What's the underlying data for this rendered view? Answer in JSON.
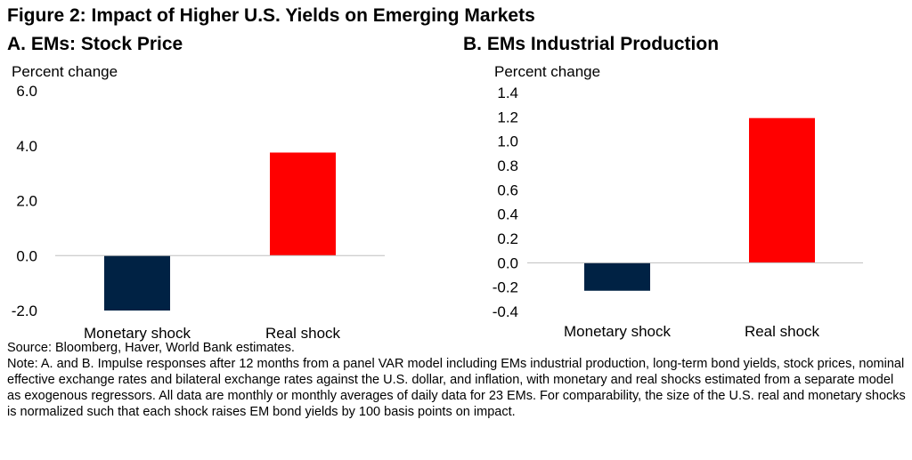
{
  "figure": {
    "title": "Figure 2: Impact of Higher U.S. Yields on Emerging Markets"
  },
  "colors": {
    "monetary": "#002244",
    "real": "#ff0000",
    "axis": "#bfbfbf"
  },
  "chart_data": [
    {
      "type": "bar",
      "title": "A. EMs: Stock Price",
      "ylabel": "Percent change",
      "categories": [
        "Monetary shock",
        "Real shock"
      ],
      "values": [
        -2.0,
        3.75
      ],
      "ylim": [
        -2.0,
        6.0
      ],
      "yticks": [
        "6.0",
        "4.0",
        "2.0",
        "0.0",
        "-2.0"
      ],
      "ytick_values": [
        6.0,
        4.0,
        2.0,
        0.0,
        -2.0
      ],
      "grid": false,
      "legend": "none"
    },
    {
      "type": "bar",
      "title": "B. EMs Industrial Production",
      "ylabel": "Percent change",
      "categories": [
        "Monetary shock",
        "Real shock"
      ],
      "values": [
        -0.23,
        1.19
      ],
      "ylim": [
        -0.4,
        1.4
      ],
      "yticks": [
        "1.4",
        "1.2",
        "1.0",
        "0.8",
        "0.6",
        "0.4",
        "0.2",
        "0.0",
        "-0.2",
        "-0.4"
      ],
      "ytick_values": [
        1.4,
        1.2,
        1.0,
        0.8,
        0.6,
        0.4,
        0.2,
        0.0,
        -0.2,
        -0.4
      ],
      "grid": false,
      "legend": "none"
    }
  ],
  "notes": {
    "source": "Source: Bloomberg, Haver, World Bank estimates.",
    "note": "Note: A. and B. Impulse responses after 12 months from a panel VAR model including EMs industrial production, long-term bond yields, stock prices, nominal effective exchange rates and bilateral exchange rates against the U.S. dollar, and inflation, with monetary and real shocks estimated from a separate model as exogenous regressors. All data are monthly or monthly averages of daily data for 23 EMs. For comparability, the size of the U.S. real and monetary shocks is normalized such that each shock raises EM bond yields by 100 basis points on impact."
  }
}
